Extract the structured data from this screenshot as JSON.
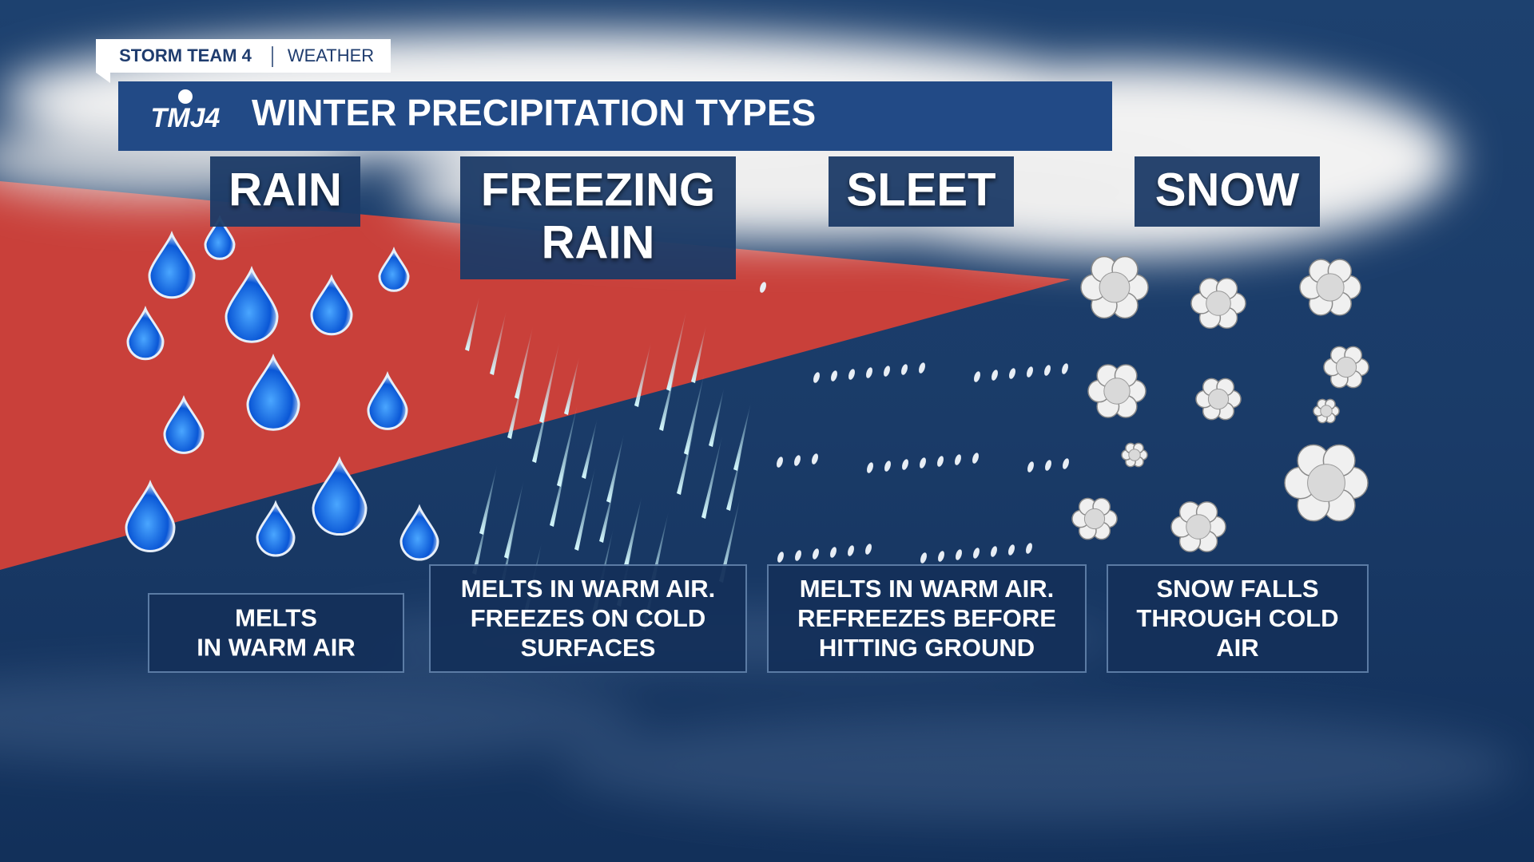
{
  "header": {
    "brand": "STORM TEAM 4",
    "section": "WEATHER",
    "logo": "TMJ4",
    "title": "WINTER PRECIPITATION TYPES"
  },
  "panels": [
    {
      "label": [
        "RAIN"
      ],
      "description": [
        "MELTS",
        "IN WARM AIR"
      ]
    },
    {
      "label": [
        "FREEZING",
        "RAIN"
      ],
      "description": [
        "MELTS IN WARM AIR.",
        "FREEZES ON COLD",
        "SURFACES"
      ]
    },
    {
      "label": [
        "SLEET"
      ],
      "description": [
        "MELTS IN WARM AIR.",
        "REFREEZES BEFORE",
        "HITTING GROUND"
      ]
    },
    {
      "label": [
        "SNOW"
      ],
      "description": [
        "SNOW FALLS",
        "THROUGH COLD",
        "AIR"
      ]
    }
  ]
}
